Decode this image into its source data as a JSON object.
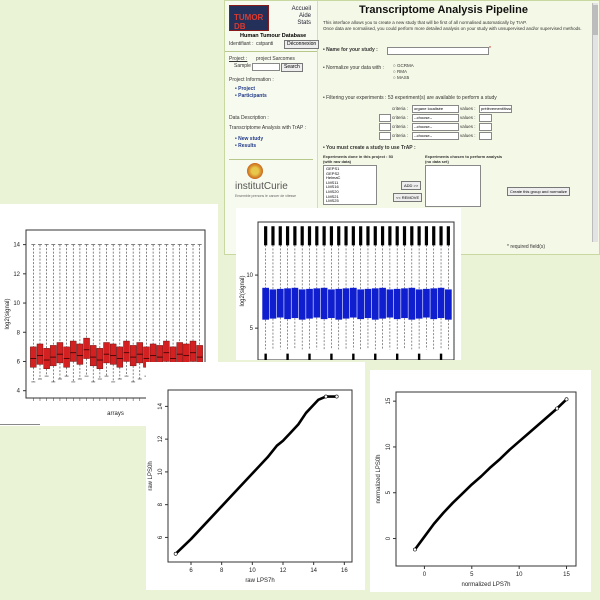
{
  "app": {
    "logo": "TUMOR DB",
    "top_links": [
      "Accueil",
      "Aide",
      "Stats"
    ],
    "database_name": "Human Tumour Database",
    "identifiant_label": "Identifiant :",
    "identifiant_value": "cstpanti",
    "deconnexion": "Déconnexion",
    "project_label": "Project :",
    "project_value": "project Sarcomes",
    "sample_label": "Sample",
    "search_button": "Search",
    "nav": {
      "project_info": "Project Information :",
      "project": "Project",
      "participants": "Participants",
      "data_description": "Data Description :",
      "transcriptome": "Transcriptome Analysis with TrAP :",
      "new_study": "New study",
      "results": "Results"
    },
    "brand": "institutCurie",
    "brand_sub": "Ensemble prenons le cancer de vitesse",
    "page_title": "Transcriptome Analysis Pipeline",
    "intro1": "This interface allows you to create a new study that will be first of all normalised automatically by TrAP.",
    "intro2": "Once data are normalised, you could perform more detailed analysis on your study with unsupervised and/or supervised methods.",
    "name_label": "• Name for your study :",
    "normalize_label": "• Normalize your data with :",
    "normalize_options": [
      "GCRMA",
      "RMA",
      "MAS5"
    ],
    "filter_label": "• Filtering your experiments : 53 experiment(s) are available to perform a study",
    "criteria_label": "criteria :",
    "values_label": "values :",
    "criteria_first": "organe localisée",
    "values_first": "prélèvement/tissu",
    "choose": "--choose--",
    "must_create": "• You must create a study to use TrAP :",
    "exp_list_title": "Experiments done in this project : 53",
    "exp_list_sub": "(with raw data)",
    "chosen_title": "Experiments chosen to perform analysis",
    "chosen_sub": "(no data set)",
    "experiments": [
      "GEPS1",
      "GEPS2",
      "HelmaC",
      "LMS11",
      "LMS16",
      "LMS20",
      "LMS21",
      "LMS25"
    ],
    "add_button": "ADD >>",
    "remove_button": "<< REMOVE",
    "create_button": "Create this group and normalize",
    "required": "* required field(s)"
  },
  "boxplot_raw": {
    "ylabel": "log2(signal)",
    "xlabel": "arrays",
    "yticks": [
      "4",
      "6",
      "8",
      "10",
      "12",
      "14"
    ],
    "chart_data": {
      "type": "box",
      "ylim": [
        3.5,
        15
      ],
      "medians": [
        6.2,
        6.4,
        6.1,
        6.3,
        6.5,
        6.2,
        6.6,
        6.4,
        6.8,
        6.3,
        6.1,
        6.5,
        6.4,
        6.2,
        6.6,
        6.3,
        6.5,
        6.2,
        6.4,
        6.3,
        6.6,
        6.2,
        6.5,
        6.4,
        6.6,
        6.3
      ],
      "color": "#d42020"
    }
  },
  "boxplot_norm": {
    "ylabel": "log2(signal)",
    "yticks": [
      "5",
      "10"
    ],
    "chart_data": {
      "type": "box",
      "ylim": [
        2,
        15
      ],
      "q1": 5.8,
      "q3": 8.8,
      "color": "#0f1fd0"
    }
  },
  "qq_raw": {
    "xlabel": "raw LPS7h",
    "ylabel": "raw LPS0h",
    "xticks": [
      "6",
      "8",
      "10",
      "12",
      "14",
      "16"
    ],
    "yticks": [
      "6",
      "8",
      "10",
      "12",
      "14"
    ],
    "chart_data": {
      "type": "scatter",
      "xlim": [
        4.5,
        16.5
      ],
      "ylim": [
        4.5,
        15
      ],
      "x": [
        5.0,
        6.0,
        7.0,
        8.0,
        9.0,
        10.0,
        11.0,
        11.6,
        12.0,
        12.5,
        13.0,
        13.5,
        14.0,
        14.3,
        14.8,
        15.5
      ],
      "y": [
        5.0,
        5.9,
        6.9,
        7.9,
        8.9,
        9.9,
        10.9,
        11.6,
        11.9,
        12.4,
        12.9,
        13.6,
        14.1,
        14.4,
        14.6,
        14.6
      ]
    }
  },
  "qq_norm": {
    "xlabel": "normalized LPS7h",
    "ylabel": "normalized LPS0h",
    "xticks": [
      "0",
      "5",
      "10",
      "15"
    ],
    "yticks": [
      "0",
      "5",
      "10",
      "15"
    ],
    "chart_data": {
      "type": "scatter",
      "xlim": [
        -3,
        16
      ],
      "ylim": [
        -3,
        16
      ],
      "x": [
        -1,
        0,
        1,
        2,
        3,
        4,
        5,
        6,
        7,
        8,
        9,
        10,
        11,
        12,
        13,
        14,
        15
      ],
      "y": [
        -1.2,
        0.2,
        1.6,
        2.8,
        3.9,
        4.9,
        5.9,
        6.8,
        7.8,
        8.7,
        9.7,
        10.6,
        11.5,
        12.4,
        13.3,
        14.2,
        15.2
      ]
    }
  }
}
